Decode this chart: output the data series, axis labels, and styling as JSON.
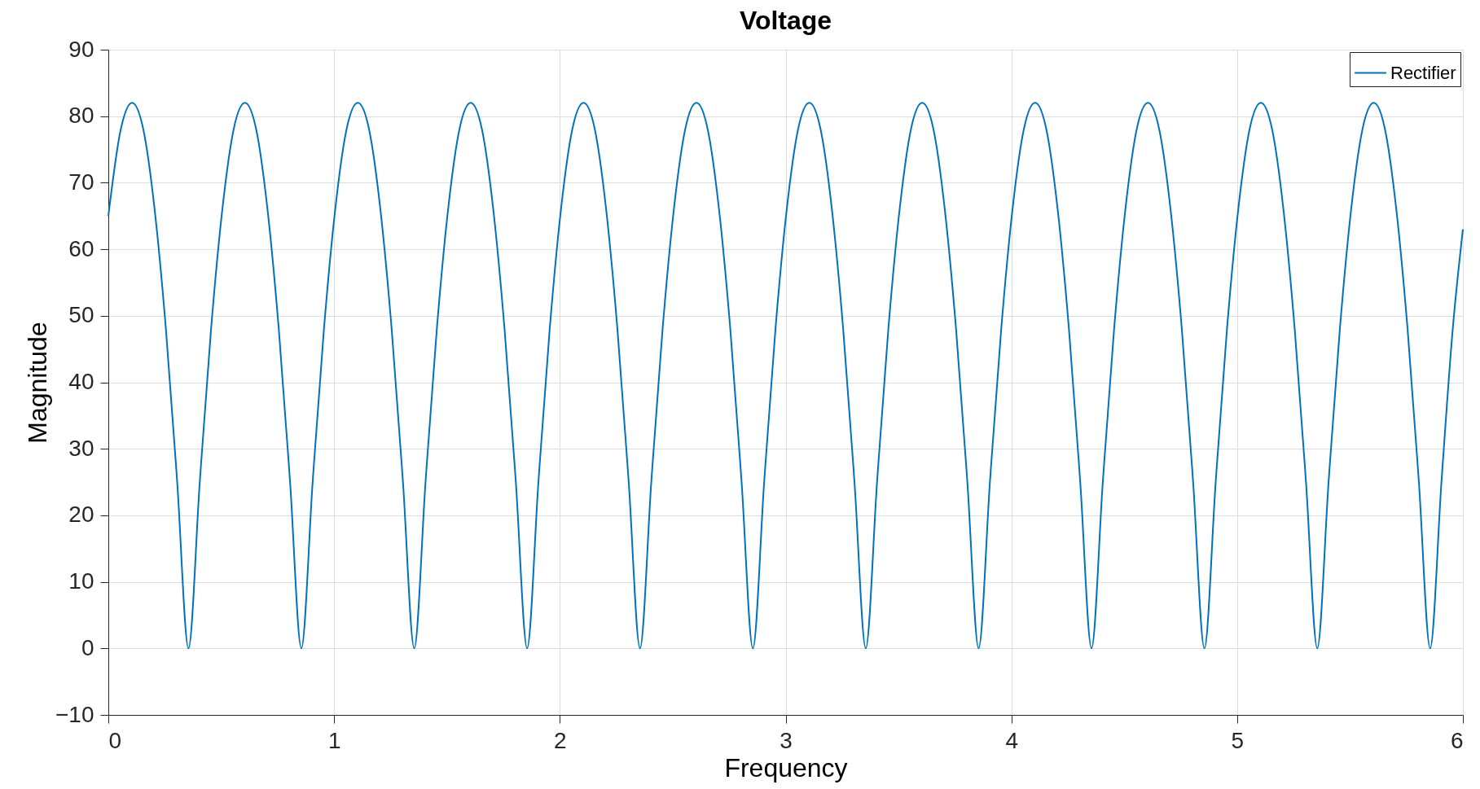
{
  "chart_data": {
    "type": "line",
    "title": "Voltage",
    "xlabel": "Frequency",
    "ylabel": "Magnitude",
    "xlim": [
      0,
      6
    ],
    "xticks": [
      0,
      1,
      2,
      3,
      4,
      5,
      6
    ],
    "ylim": [
      -10,
      90
    ],
    "yticks": [
      -10,
      0,
      10,
      20,
      30,
      40,
      50,
      60,
      70,
      80,
      90
    ],
    "grid": true,
    "legend": "top right",
    "marker": "none",
    "line_style": "solid",
    "series": [
      {
        "name": "Rectifier",
        "color": "#0072bd",
        "x": [
          0,
          0.055,
          0.105,
          0.155,
          0.205,
          0.255,
          0.305,
          0.355,
          0.405,
          0.455,
          0.505,
          0.555,
          0.605,
          0.655,
          0.705,
          0.755,
          0.805,
          0.855,
          0.905,
          0.955,
          1.005,
          1.055,
          1.105,
          1.155,
          1.205,
          1.255,
          1.305,
          1.355,
          1.405,
          1.455,
          1.505,
          1.555,
          1.605,
          1.655,
          1.705,
          1.755,
          1.805,
          1.855,
          1.905,
          1.955,
          2.005,
          2.055,
          2.105,
          2.155,
          2.205,
          2.255,
          2.305,
          2.355,
          2.405,
          2.455,
          2.505,
          2.555,
          2.605,
          2.655,
          2.705,
          2.755,
          2.805,
          2.855,
          2.905,
          2.955,
          3.005,
          3.055,
          3.105,
          3.155,
          3.205,
          3.255,
          3.305,
          3.355,
          3.405,
          3.455,
          3.505,
          3.555,
          3.605,
          3.655,
          3.705,
          3.755,
          3.805,
          3.855,
          3.905,
          3.955,
          4.005,
          4.055,
          4.105,
          4.155,
          4.205,
          4.255,
          4.305,
          4.355,
          4.405,
          4.455,
          4.505,
          4.555,
          4.605,
          4.655,
          4.705,
          4.755,
          4.805,
          4.855,
          4.905,
          4.955,
          5.005,
          5.055,
          5.105,
          5.155,
          5.205,
          5.255,
          5.305,
          5.355,
          5.405,
          5.455,
          5.505,
          5.555,
          5.605,
          5.655,
          5.705,
          5.755,
          5.805,
          5.855,
          5.905,
          5.955,
          6
        ],
        "values": [
          65,
          78,
          82,
          78,
          66,
          48,
          25,
          0,
          25,
          48,
          66,
          78,
          82,
          78,
          66,
          48,
          25,
          0,
          25,
          48,
          66,
          78,
          82,
          78,
          66,
          48,
          25,
          0,
          25,
          48,
          66,
          78,
          82,
          78,
          66,
          48,
          25,
          0,
          25,
          48,
          66,
          78,
          82,
          78,
          66,
          48,
          25,
          0,
          25,
          48,
          66,
          78,
          82,
          78,
          66,
          48,
          25,
          0,
          25,
          48,
          66,
          78,
          82,
          78,
          66,
          48,
          25,
          0,
          25,
          48,
          66,
          78,
          82,
          78,
          66,
          48,
          25,
          0,
          25,
          48,
          66,
          78,
          82,
          78,
          66,
          48,
          25,
          0,
          25,
          48,
          66,
          78,
          82,
          78,
          66,
          48,
          25,
          0,
          25,
          48,
          66,
          78,
          82,
          78,
          66,
          48,
          25,
          0,
          25,
          48,
          66,
          78,
          82,
          78,
          66,
          48,
          25,
          0,
          25,
          48,
          63
        ]
      }
    ]
  }
}
